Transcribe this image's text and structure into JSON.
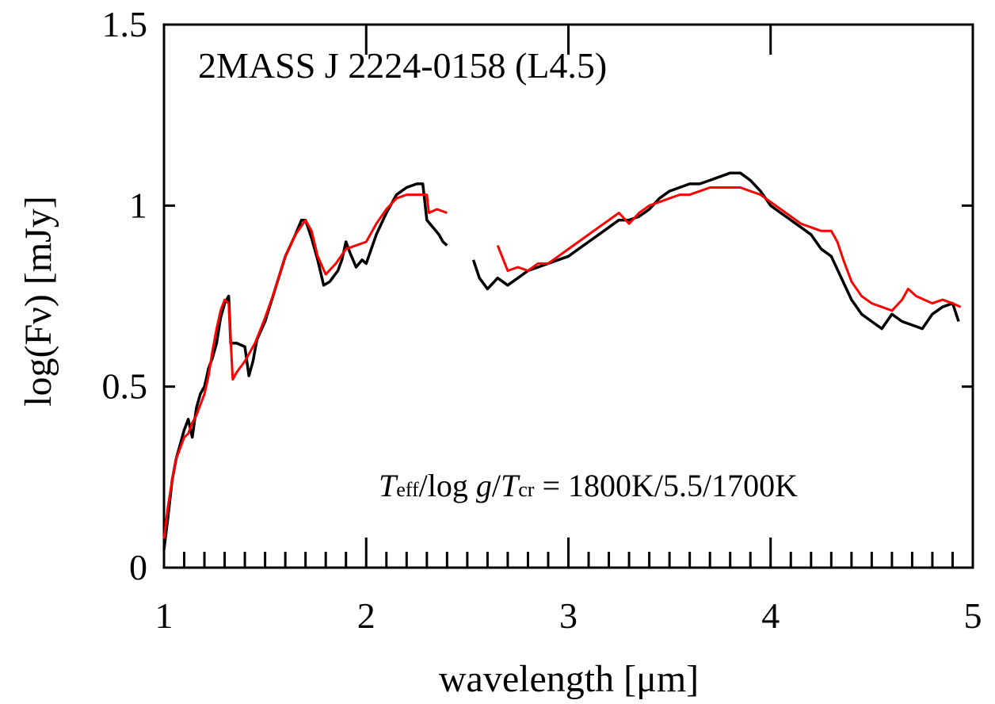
{
  "chart_data": {
    "type": "line",
    "title": "2MASS J 2224-0158 (L4.5)",
    "xlabel": "wavelength [μm]",
    "ylabel": "log(Fν) [mJy]",
    "xlim": [
      1,
      5
    ],
    "ylim": [
      0,
      1.5
    ],
    "xticks": [
      "1",
      "2",
      "3",
      "4",
      "5"
    ],
    "yticks": [
      "0",
      "0.5",
      "1",
      "1.5"
    ],
    "grid": false,
    "annotation": {
      "T1": "T",
      "sub1": "eff",
      "slash1": "/log ",
      "g": "g",
      "slash2": "/",
      "T2": "T",
      "sub2": "cr",
      "rest": " = 1800K/5.5/1700K"
    },
    "series": [
      {
        "color": "#000000",
        "segments": [
          [
            [
              1.0,
              0.05
            ],
            [
              1.02,
              0.14
            ],
            [
              1.04,
              0.24
            ],
            [
              1.06,
              0.3
            ],
            [
              1.08,
              0.34
            ],
            [
              1.1,
              0.38
            ],
            [
              1.12,
              0.41
            ],
            [
              1.14,
              0.36
            ],
            [
              1.16,
              0.44
            ],
            [
              1.18,
              0.48
            ],
            [
              1.2,
              0.5
            ],
            [
              1.22,
              0.55
            ],
            [
              1.24,
              0.58
            ],
            [
              1.26,
              0.62
            ],
            [
              1.28,
              0.69
            ],
            [
              1.3,
              0.73
            ],
            [
              1.32,
              0.75
            ],
            [
              1.33,
              0.62
            ],
            [
              1.36,
              0.62
            ],
            [
              1.4,
              0.61
            ],
            [
              1.42,
              0.53
            ],
            [
              1.44,
              0.57
            ],
            [
              1.46,
              0.63
            ],
            [
              1.5,
              0.68
            ],
            [
              1.55,
              0.77
            ],
            [
              1.6,
              0.86
            ],
            [
              1.65,
              0.92
            ],
            [
              1.68,
              0.96
            ],
            [
              1.7,
              0.96
            ],
            [
              1.73,
              0.91
            ],
            [
              1.76,
              0.85
            ],
            [
              1.79,
              0.78
            ],
            [
              1.82,
              0.79
            ],
            [
              1.86,
              0.82
            ],
            [
              1.88,
              0.85
            ],
            [
              1.9,
              0.9
            ],
            [
              1.92,
              0.87
            ],
            [
              1.95,
              0.83
            ],
            [
              1.98,
              0.85
            ],
            [
              2.0,
              0.84
            ],
            [
              2.05,
              0.92
            ],
            [
              2.1,
              0.98
            ],
            [
              2.15,
              1.03
            ],
            [
              2.2,
              1.05
            ],
            [
              2.25,
              1.06
            ],
            [
              2.28,
              1.06
            ],
            [
              2.3,
              0.96
            ],
            [
              2.33,
              0.94
            ],
            [
              2.36,
              0.92
            ],
            [
              2.38,
              0.9
            ],
            [
              2.4,
              0.89
            ]
          ],
          [
            [
              2.53,
              0.85
            ],
            [
              2.56,
              0.8
            ],
            [
              2.6,
              0.77
            ],
            [
              2.65,
              0.8
            ],
            [
              2.7,
              0.78
            ],
            [
              2.75,
              0.8
            ],
            [
              2.8,
              0.82
            ],
            [
              2.85,
              0.83
            ],
            [
              2.9,
              0.84
            ],
            [
              2.95,
              0.85
            ],
            [
              3.0,
              0.86
            ],
            [
              3.05,
              0.88
            ],
            [
              3.1,
              0.9
            ],
            [
              3.15,
              0.92
            ],
            [
              3.2,
              0.94
            ],
            [
              3.25,
              0.96
            ],
            [
              3.3,
              0.96
            ],
            [
              3.35,
              0.97
            ],
            [
              3.4,
              0.99
            ],
            [
              3.45,
              1.02
            ],
            [
              3.5,
              1.04
            ],
            [
              3.55,
              1.05
            ],
            [
              3.6,
              1.06
            ],
            [
              3.65,
              1.06
            ],
            [
              3.7,
              1.07
            ],
            [
              3.75,
              1.08
            ],
            [
              3.8,
              1.09
            ],
            [
              3.85,
              1.09
            ],
            [
              3.9,
              1.07
            ],
            [
              3.95,
              1.04
            ],
            [
              4.0,
              1.0
            ],
            [
              4.05,
              0.98
            ],
            [
              4.1,
              0.96
            ],
            [
              4.15,
              0.94
            ],
            [
              4.2,
              0.92
            ],
            [
              4.25,
              0.88
            ],
            [
              4.3,
              0.86
            ],
            [
              4.35,
              0.8
            ],
            [
              4.4,
              0.74
            ],
            [
              4.45,
              0.7
            ],
            [
              4.5,
              0.68
            ],
            [
              4.55,
              0.66
            ],
            [
              4.6,
              0.7
            ],
            [
              4.65,
              0.68
            ],
            [
              4.7,
              0.67
            ],
            [
              4.75,
              0.66
            ],
            [
              4.8,
              0.7
            ],
            [
              4.85,
              0.72
            ],
            [
              4.9,
              0.73
            ],
            [
              4.93,
              0.68
            ]
          ]
        ]
      },
      {
        "color": "#ff0000",
        "segments": [
          [
            [
              1.0,
              0.08
            ],
            [
              1.02,
              0.17
            ],
            [
              1.04,
              0.24
            ],
            [
              1.06,
              0.3
            ],
            [
              1.08,
              0.33
            ],
            [
              1.1,
              0.36
            ],
            [
              1.12,
              0.37
            ],
            [
              1.14,
              0.4
            ],
            [
              1.16,
              0.42
            ],
            [
              1.18,
              0.45
            ],
            [
              1.2,
              0.48
            ],
            [
              1.22,
              0.53
            ],
            [
              1.24,
              0.6
            ],
            [
              1.26,
              0.66
            ],
            [
              1.28,
              0.71
            ],
            [
              1.3,
              0.74
            ],
            [
              1.32,
              0.73
            ],
            [
              1.34,
              0.52
            ],
            [
              1.36,
              0.54
            ],
            [
              1.4,
              0.57
            ],
            [
              1.45,
              0.62
            ],
            [
              1.5,
              0.69
            ],
            [
              1.55,
              0.77
            ],
            [
              1.6,
              0.86
            ],
            [
              1.65,
              0.92
            ],
            [
              1.7,
              0.96
            ],
            [
              1.73,
              0.93
            ],
            [
              1.76,
              0.86
            ],
            [
              1.8,
              0.81
            ],
            [
              1.85,
              0.84
            ],
            [
              1.9,
              0.88
            ],
            [
              1.95,
              0.89
            ],
            [
              2.0,
              0.9
            ],
            [
              2.05,
              0.95
            ],
            [
              2.1,
              0.99
            ],
            [
              2.15,
              1.02
            ],
            [
              2.2,
              1.03
            ],
            [
              2.25,
              1.03
            ],
            [
              2.3,
              1.03
            ],
            [
              2.31,
              0.98
            ],
            [
              2.35,
              0.99
            ],
            [
              2.4,
              0.98
            ]
          ],
          [
            [
              2.65,
              0.89
            ],
            [
              2.7,
              0.82
            ],
            [
              2.75,
              0.83
            ],
            [
              2.8,
              0.82
            ],
            [
              2.85,
              0.84
            ],
            [
              2.9,
              0.84
            ],
            [
              2.95,
              0.86
            ],
            [
              3.0,
              0.88
            ],
            [
              3.05,
              0.9
            ],
            [
              3.1,
              0.92
            ],
            [
              3.15,
              0.94
            ],
            [
              3.2,
              0.96
            ],
            [
              3.25,
              0.98
            ],
            [
              3.3,
              0.95
            ],
            [
              3.35,
              0.98
            ],
            [
              3.4,
              1.0
            ],
            [
              3.45,
              1.01
            ],
            [
              3.5,
              1.02
            ],
            [
              3.55,
              1.03
            ],
            [
              3.6,
              1.03
            ],
            [
              3.65,
              1.04
            ],
            [
              3.7,
              1.05
            ],
            [
              3.75,
              1.05
            ],
            [
              3.8,
              1.05
            ],
            [
              3.85,
              1.05
            ],
            [
              3.9,
              1.04
            ],
            [
              3.95,
              1.03
            ],
            [
              4.0,
              1.01
            ],
            [
              4.05,
              0.99
            ],
            [
              4.1,
              0.97
            ],
            [
              4.15,
              0.95
            ],
            [
              4.2,
              0.94
            ],
            [
              4.25,
              0.93
            ],
            [
              4.3,
              0.93
            ],
            [
              4.33,
              0.9
            ],
            [
              4.36,
              0.85
            ],
            [
              4.4,
              0.79
            ],
            [
              4.45,
              0.75
            ],
            [
              4.5,
              0.73
            ],
            [
              4.55,
              0.72
            ],
            [
              4.6,
              0.71
            ],
            [
              4.65,
              0.74
            ],
            [
              4.68,
              0.77
            ],
            [
              4.72,
              0.75
            ],
            [
              4.76,
              0.74
            ],
            [
              4.8,
              0.73
            ],
            [
              4.85,
              0.74
            ],
            [
              4.9,
              0.73
            ],
            [
              4.94,
              0.72
            ]
          ]
        ]
      }
    ]
  }
}
